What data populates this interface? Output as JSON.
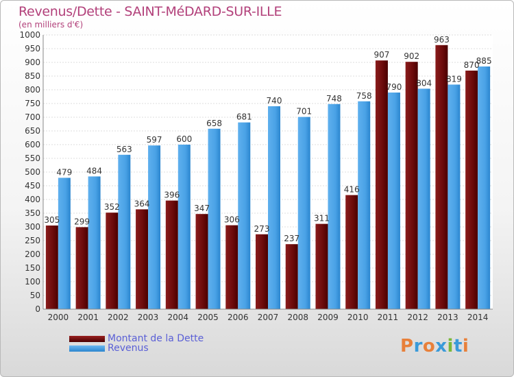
{
  "title": "Revenus/Dette - SAINT-MéDARD-SUR-ILLE",
  "subtitle": "(en milliers d'€)",
  "legend": {
    "dette": "Montant de la Dette",
    "revenus": "Revenus"
  },
  "logo": {
    "text": "Proxiti",
    "letters": [
      "P",
      "r",
      "o",
      "x",
      "i",
      "t",
      "i"
    ],
    "colors": [
      "#e8803a",
      "#3a9ad9",
      "#e8803a",
      "#3a9ad9",
      "#7ab83a",
      "#3a9ad9",
      "#e8803a"
    ]
  },
  "colors": {
    "dette_top": "#9b2020",
    "dette_bottom": "#4a0000",
    "revenus_top": "#6cb8f0",
    "revenus_bottom": "#2b86cf",
    "title": "#b2407a",
    "legend_text": "#5a5fd6"
  },
  "chart_data": {
    "type": "bar",
    "title": "Revenus/Dette - SAINT-MéDARD-SUR-ILLE",
    "subtitle": "(en milliers d'€)",
    "categories": [
      "2000",
      "2001",
      "2002",
      "2003",
      "2004",
      "2005",
      "2006",
      "2007",
      "2008",
      "2009",
      "2010",
      "2011",
      "2012",
      "2013",
      "2014"
    ],
    "series": [
      {
        "name": "Montant de la Dette",
        "values": [
          305,
          299,
          352,
          364,
          396,
          347,
          306,
          273,
          237,
          311,
          416,
          907,
          902,
          963,
          870
        ]
      },
      {
        "name": "Revenus",
        "values": [
          479,
          484,
          563,
          597,
          600,
          658,
          681,
          740,
          701,
          748,
          758,
          790,
          804,
          819,
          885
        ]
      }
    ],
    "ylim": [
      0,
      1000
    ],
    "ystep": 50,
    "grid": true,
    "legend_position": "bottom-left"
  }
}
